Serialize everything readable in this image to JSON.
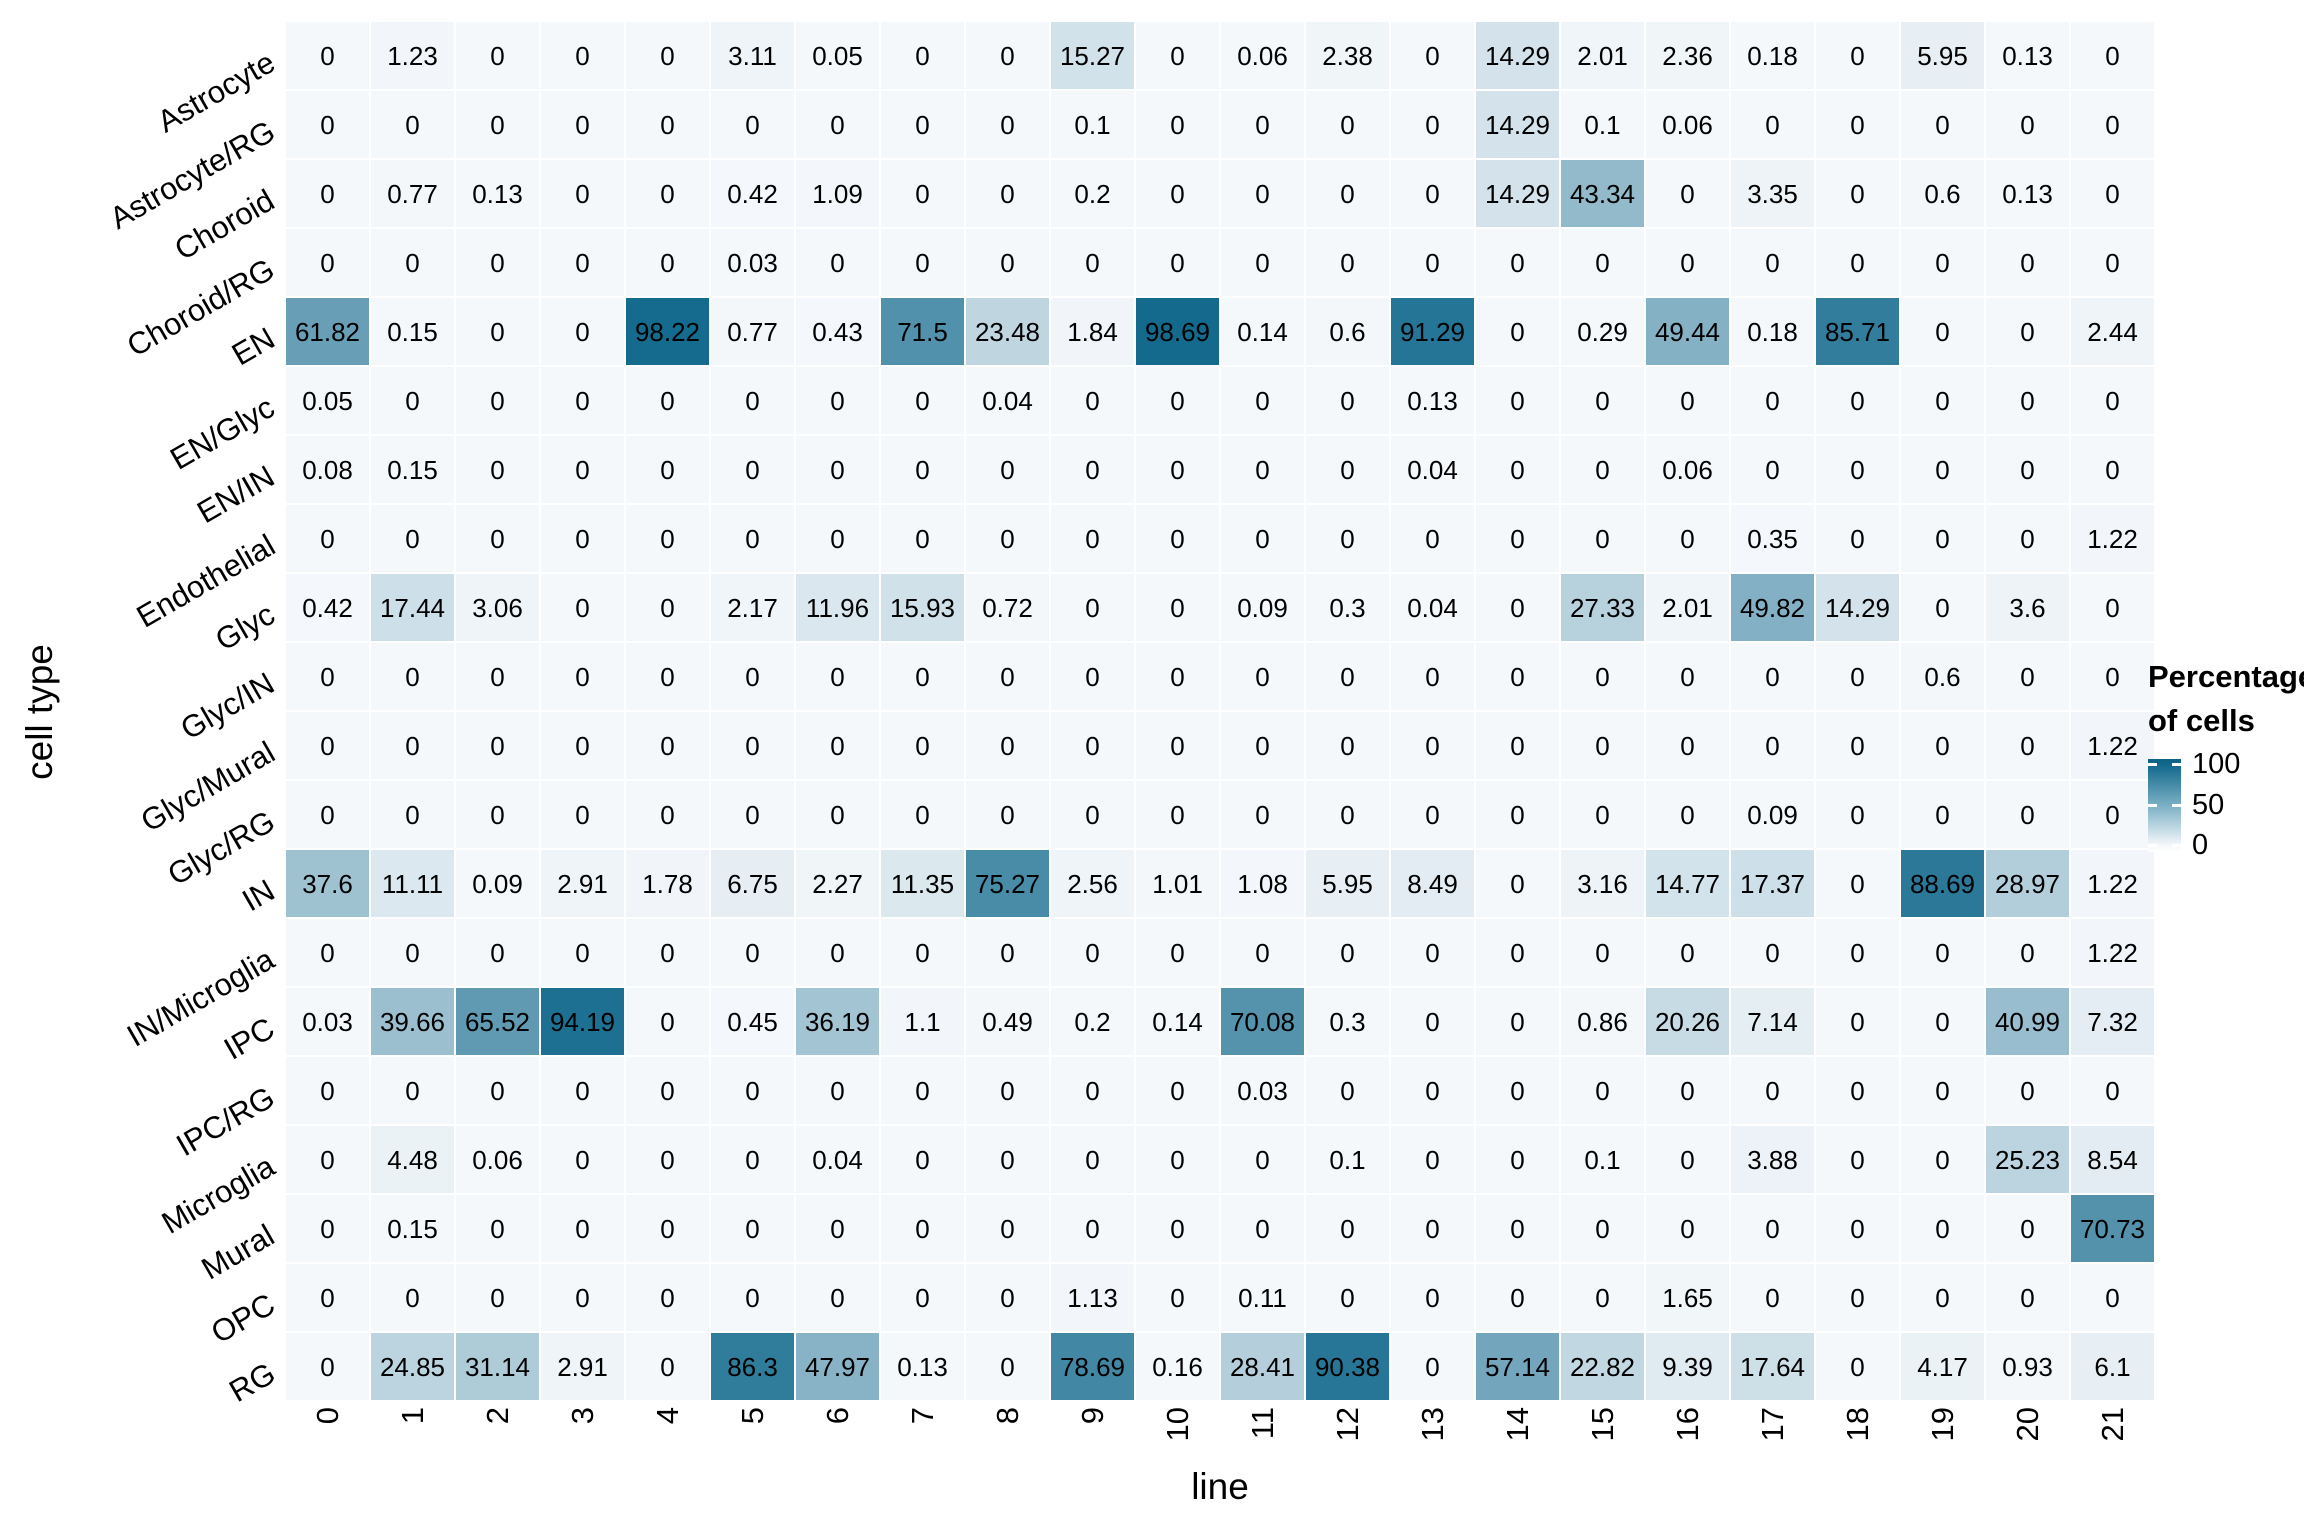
{
  "chart_data": {
    "type": "heatmap",
    "xlabel": "line",
    "ylabel": "cell type",
    "values_unit": "percent",
    "value_domain": [
      0,
      100
    ],
    "grid": "off",
    "colors": {
      "low": "#f5f8fb",
      "high": "#11688c"
    },
    "legend": {
      "title_line1": "Percentage",
      "title_line2": "of cells",
      "tick_labels": [
        "100",
        "50",
        "0"
      ],
      "position": "right"
    },
    "x_categories": [
      "0",
      "1",
      "2",
      "3",
      "4",
      "5",
      "6",
      "7",
      "8",
      "9",
      "10",
      "11",
      "12",
      "13",
      "14",
      "15",
      "16",
      "17",
      "18",
      "19",
      "20",
      "21"
    ],
    "y_categories": [
      "Astrocyte",
      "Astrocyte/RG",
      "Choroid",
      "Choroid/RG",
      "EN",
      "EN/Glyc",
      "EN/IN",
      "Endothelial",
      "Glyc",
      "Glyc/IN",
      "Glyc/Mural",
      "Glyc/RG",
      "IN",
      "IN/Microglia",
      "IPC",
      "IPC/RG",
      "Microglia",
      "Mural",
      "OPC",
      "RG"
    ],
    "rows": [
      {
        "cell_type": "Astrocyte",
        "values": [
          0,
          1.23,
          0,
          0,
          0,
          3.11,
          0.05,
          0,
          0,
          15.27,
          0,
          0.06,
          2.38,
          0,
          14.29,
          2.01,
          2.36,
          0.18,
          0,
          5.95,
          0.13,
          0
        ]
      },
      {
        "cell_type": "Astrocyte/RG",
        "values": [
          0,
          0,
          0,
          0,
          0,
          0,
          0,
          0,
          0,
          0.1,
          0,
          0,
          0,
          0,
          14.29,
          0.1,
          0.06,
          0,
          0,
          0,
          0,
          0
        ]
      },
      {
        "cell_type": "Choroid",
        "values": [
          0,
          0.77,
          0.13,
          0,
          0,
          0.42,
          1.09,
          0,
          0,
          0.2,
          0,
          0,
          0,
          0,
          14.29,
          43.34,
          0,
          3.35,
          0,
          0.6,
          0.13,
          0
        ]
      },
      {
        "cell_type": "Choroid/RG",
        "values": [
          0,
          0,
          0,
          0,
          0,
          0.03,
          0,
          0,
          0,
          0,
          0,
          0,
          0,
          0,
          0,
          0,
          0,
          0,
          0,
          0,
          0,
          0
        ]
      },
      {
        "cell_type": "EN",
        "values": [
          61.82,
          0.15,
          0,
          0,
          98.22,
          0.77,
          0.43,
          71.5,
          23.48,
          1.84,
          98.69,
          0.14,
          0.6,
          91.29,
          0,
          0.29,
          49.44,
          0.18,
          85.71,
          0,
          0,
          2.44
        ]
      },
      {
        "cell_type": "EN/Glyc",
        "values": [
          0.05,
          0,
          0,
          0,
          0,
          0,
          0,
          0,
          0.04,
          0,
          0,
          0,
          0,
          0.13,
          0,
          0,
          0,
          0,
          0,
          0,
          0,
          0
        ]
      },
      {
        "cell_type": "EN/IN",
        "values": [
          0.08,
          0.15,
          0,
          0,
          0,
          0,
          0,
          0,
          0,
          0,
          0,
          0,
          0,
          0.04,
          0,
          0,
          0.06,
          0,
          0,
          0,
          0,
          0
        ]
      },
      {
        "cell_type": "Endothelial",
        "values": [
          0,
          0,
          0,
          0,
          0,
          0,
          0,
          0,
          0,
          0,
          0,
          0,
          0,
          0,
          0,
          0,
          0,
          0.35,
          0,
          0,
          0,
          1.22
        ]
      },
      {
        "cell_type": "Glyc",
        "values": [
          0.42,
          17.44,
          3.06,
          0,
          0,
          2.17,
          11.96,
          15.93,
          0.72,
          0,
          0,
          0.09,
          0.3,
          0.04,
          0,
          27.33,
          2.01,
          49.82,
          14.29,
          0,
          3.6,
          0
        ]
      },
      {
        "cell_type": "Glyc/IN",
        "values": [
          0,
          0,
          0,
          0,
          0,
          0,
          0,
          0,
          0,
          0,
          0,
          0,
          0,
          0,
          0,
          0,
          0,
          0,
          0,
          0.6,
          0,
          0
        ]
      },
      {
        "cell_type": "Glyc/Mural",
        "values": [
          0,
          0,
          0,
          0,
          0,
          0,
          0,
          0,
          0,
          0,
          0,
          0,
          0,
          0,
          0,
          0,
          0,
          0,
          0,
          0,
          0,
          1.22
        ]
      },
      {
        "cell_type": "Glyc/RG",
        "values": [
          0,
          0,
          0,
          0,
          0,
          0,
          0,
          0,
          0,
          0,
          0,
          0,
          0,
          0,
          0,
          0,
          0,
          0.09,
          0,
          0,
          0,
          0
        ]
      },
      {
        "cell_type": "IN",
        "values": [
          37.6,
          11.11,
          0.09,
          2.91,
          1.78,
          6.75,
          2.27,
          11.35,
          75.27,
          2.56,
          1.01,
          1.08,
          5.95,
          8.49,
          0,
          3.16,
          14.77,
          17.37,
          0,
          88.69,
          28.97,
          1.22
        ]
      },
      {
        "cell_type": "IN/Microglia",
        "values": [
          0,
          0,
          0,
          0,
          0,
          0,
          0,
          0,
          0,
          0,
          0,
          0,
          0,
          0,
          0,
          0,
          0,
          0,
          0,
          0,
          0,
          1.22
        ]
      },
      {
        "cell_type": "IPC",
        "values": [
          0.03,
          39.66,
          65.52,
          94.19,
          0,
          0.45,
          36.19,
          1.1,
          0.49,
          0.2,
          0.14,
          70.08,
          0.3,
          0,
          0,
          0.86,
          20.26,
          7.14,
          0,
          0,
          40.99,
          7.32
        ]
      },
      {
        "cell_type": "IPC/RG",
        "values": [
          0,
          0,
          0,
          0,
          0,
          0,
          0,
          0,
          0,
          0,
          0,
          0.03,
          0,
          0,
          0,
          0,
          0,
          0,
          0,
          0,
          0,
          0
        ]
      },
      {
        "cell_type": "Microglia",
        "values": [
          0,
          4.48,
          0.06,
          0,
          0,
          0,
          0.04,
          0,
          0,
          0,
          0,
          0,
          0.1,
          0,
          0,
          0.1,
          0,
          3.88,
          0,
          0,
          25.23,
          8.54
        ]
      },
      {
        "cell_type": "Mural",
        "values": [
          0,
          0.15,
          0,
          0,
          0,
          0,
          0,
          0,
          0,
          0,
          0,
          0,
          0,
          0,
          0,
          0,
          0,
          0,
          0,
          0,
          0,
          70.73
        ]
      },
      {
        "cell_type": "OPC",
        "values": [
          0,
          0,
          0,
          0,
          0,
          0,
          0,
          0,
          0,
          1.13,
          0,
          0.11,
          0,
          0,
          0,
          0,
          1.65,
          0,
          0,
          0,
          0,
          0
        ]
      },
      {
        "cell_type": "RG",
        "values": [
          0,
          24.85,
          31.14,
          2.91,
          0,
          86.3,
          47.97,
          0.13,
          0,
          78.69,
          0.16,
          28.41,
          90.38,
          0,
          57.14,
          22.82,
          9.39,
          17.64,
          0,
          4.17,
          0.93,
          6.1
        ]
      }
    ]
  }
}
